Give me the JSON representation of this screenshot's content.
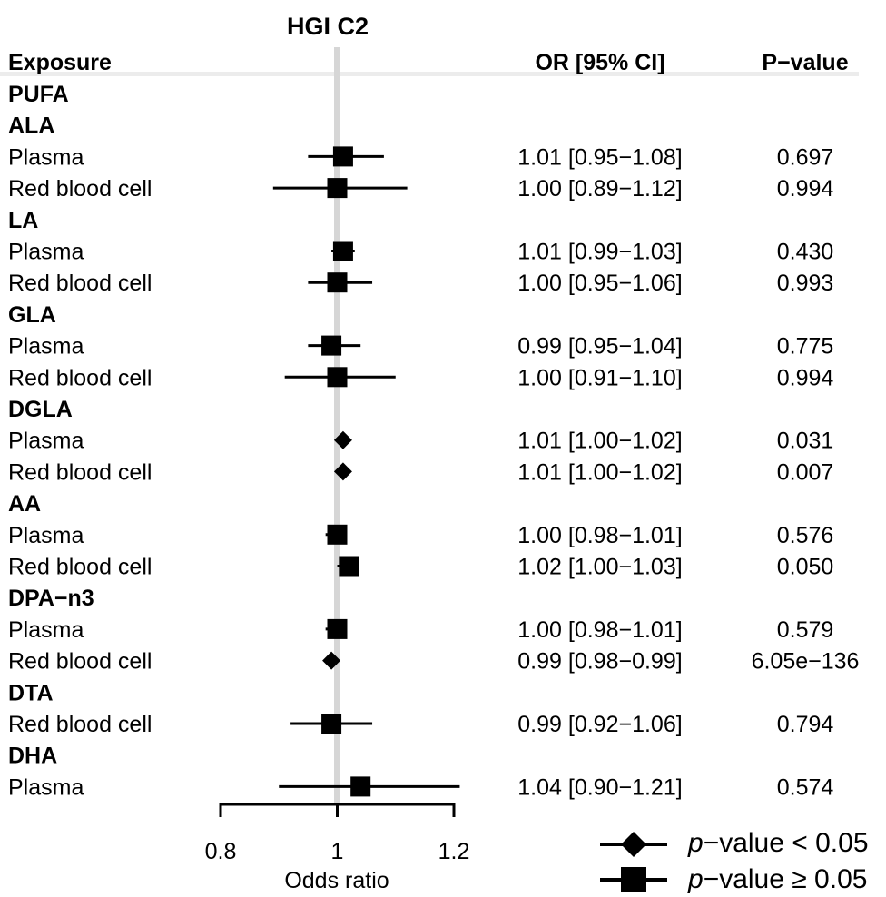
{
  "chart_data": {
    "type": "forest",
    "title": "HGI C2",
    "xlabel": "Odds ratio",
    "xlim": [
      0.8,
      1.2
    ],
    "xticks": [
      {
        "value": 0.8,
        "label": "0.8"
      },
      {
        "value": 1.0,
        "label": "1"
      },
      {
        "value": 1.2,
        "label": "1.2"
      }
    ],
    "reference_line": 1.0,
    "columns": {
      "exposure": "Exposure",
      "or_ci": "OR [95% CI]",
      "pvalue": "P−value"
    },
    "rows": [
      {
        "kind": "header",
        "label": "PUFA"
      },
      {
        "kind": "header",
        "label": "ALA"
      },
      {
        "kind": "data",
        "label": "Plasma",
        "or": 1.01,
        "lo": 0.95,
        "hi": 1.08,
        "or_text": "1.01 [0.95−1.08]",
        "p_text": "0.697",
        "significant": false
      },
      {
        "kind": "data",
        "label": "Red blood cell",
        "or": 1.0,
        "lo": 0.89,
        "hi": 1.12,
        "or_text": "1.00 [0.89−1.12]",
        "p_text": "0.994",
        "significant": false
      },
      {
        "kind": "header",
        "label": "LA"
      },
      {
        "kind": "data",
        "label": "Plasma",
        "or": 1.01,
        "lo": 0.99,
        "hi": 1.03,
        "or_text": "1.01 [0.99−1.03]",
        "p_text": "0.430",
        "significant": false
      },
      {
        "kind": "data",
        "label": "Red blood cell",
        "or": 1.0,
        "lo": 0.95,
        "hi": 1.06,
        "or_text": "1.00 [0.95−1.06]",
        "p_text": "0.993",
        "significant": false
      },
      {
        "kind": "header",
        "label": "GLA"
      },
      {
        "kind": "data",
        "label": "Plasma",
        "or": 0.99,
        "lo": 0.95,
        "hi": 1.04,
        "or_text": "0.99 [0.95−1.04]",
        "p_text": "0.775",
        "significant": false
      },
      {
        "kind": "data",
        "label": "Red blood cell",
        "or": 1.0,
        "lo": 0.91,
        "hi": 1.1,
        "or_text": "1.00 [0.91−1.10]",
        "p_text": "0.994",
        "significant": false
      },
      {
        "kind": "header",
        "label": "DGLA"
      },
      {
        "kind": "data",
        "label": "Plasma",
        "or": 1.01,
        "lo": 1.0,
        "hi": 1.02,
        "or_text": "1.01 [1.00−1.02]",
        "p_text": "0.031",
        "significant": true
      },
      {
        "kind": "data",
        "label": "Red blood cell",
        "or": 1.01,
        "lo": 1.0,
        "hi": 1.02,
        "or_text": "1.01 [1.00−1.02]",
        "p_text": "0.007",
        "significant": true
      },
      {
        "kind": "header",
        "label": "AA"
      },
      {
        "kind": "data",
        "label": "Plasma",
        "or": 1.0,
        "lo": 0.98,
        "hi": 1.01,
        "or_text": "1.00 [0.98−1.01]",
        "p_text": "0.576",
        "significant": false
      },
      {
        "kind": "data",
        "label": "Red blood cell",
        "or": 1.02,
        "lo": 1.0,
        "hi": 1.03,
        "or_text": "1.02 [1.00−1.03]",
        "p_text": "0.050",
        "significant": false
      },
      {
        "kind": "header",
        "label": "DPA−n3"
      },
      {
        "kind": "data",
        "label": "Plasma",
        "or": 1.0,
        "lo": 0.98,
        "hi": 1.01,
        "or_text": "1.00 [0.98−1.01]",
        "p_text": "0.579",
        "significant": false
      },
      {
        "kind": "data",
        "label": "Red blood cell",
        "or": 0.99,
        "lo": 0.98,
        "hi": 0.99,
        "or_text": "0.99 [0.98−0.99]",
        "p_text": "6.05e−136",
        "significant": true
      },
      {
        "kind": "header",
        "label": "DTA"
      },
      {
        "kind": "data",
        "label": "Red blood cell",
        "or": 0.99,
        "lo": 0.92,
        "hi": 1.06,
        "or_text": "0.99 [0.92−1.06]",
        "p_text": "0.794",
        "significant": false
      },
      {
        "kind": "header",
        "label": "DHA"
      },
      {
        "kind": "data",
        "label": "Plasma",
        "or": 1.04,
        "lo": 0.9,
        "hi": 1.21,
        "or_text": "1.04 [0.90−1.21]",
        "p_text": "0.574",
        "significant": false
      }
    ],
    "legend": {
      "placement": "bottom-right",
      "items": [
        {
          "shape": "diamond",
          "italic": "p",
          "text": "−value < 0.05"
        },
        {
          "shape": "square",
          "italic": "p",
          "text": "−value ≥ 0.05"
        }
      ]
    },
    "colors": {
      "marker": "#000000",
      "reference_line": "#d6d6d6",
      "header_rule": "#ececec"
    }
  }
}
